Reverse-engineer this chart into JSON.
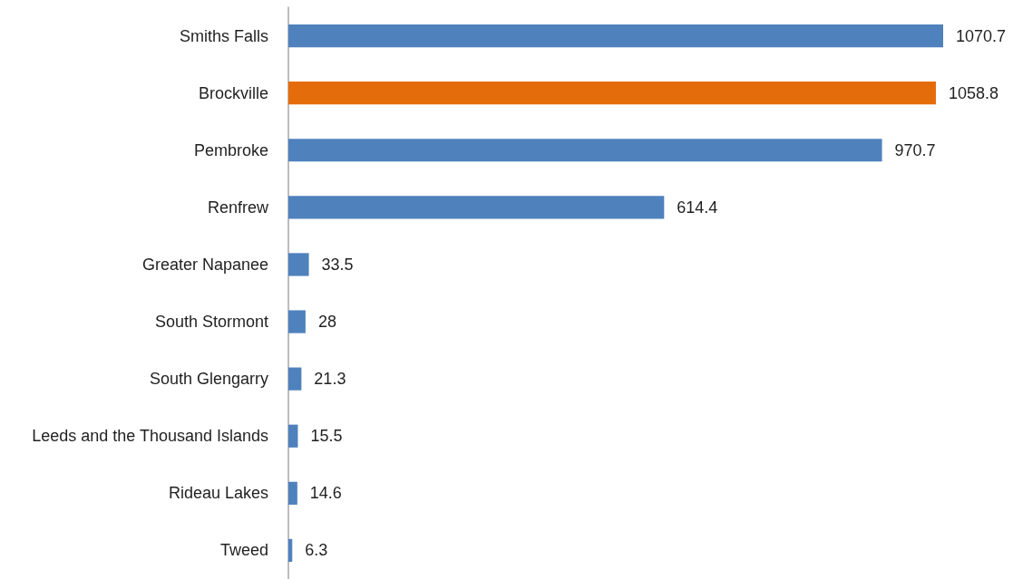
{
  "chart_data": {
    "type": "bar",
    "orientation": "horizontal",
    "categories": [
      "Smiths Falls",
      "Brockville",
      "Pembroke",
      "Renfrew",
      "Greater Napanee",
      "South Stormont",
      "South Glengarry",
      "Leeds and the Thousand Islands",
      "Rideau Lakes",
      "Tweed"
    ],
    "values": [
      1070.7,
      1058.8,
      970.7,
      614.4,
      33.5,
      28,
      21.3,
      15.5,
      14.6,
      6.3
    ],
    "colors": [
      "#4f81bd",
      "#e46c0a",
      "#4f81bd",
      "#4f81bd",
      "#4f81bd",
      "#4f81bd",
      "#4f81bd",
      "#4f81bd",
      "#4f81bd",
      "#4f81bd"
    ],
    "data_labels": true
  }
}
